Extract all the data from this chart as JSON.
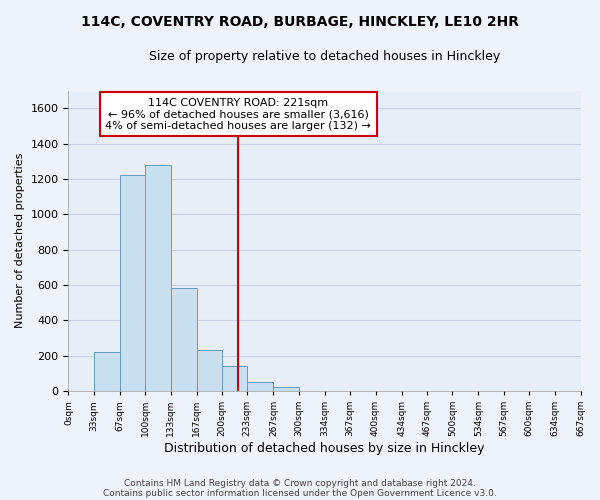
{
  "title_line1": "114C, COVENTRY ROAD, BURBAGE, HINCKLEY, LE10 2HR",
  "title_line2": "Size of property relative to detached houses in Hinckley",
  "xlabel": "Distribution of detached houses by size in Hinckley",
  "ylabel": "Number of detached properties",
  "bar_edges": [
    0,
    33,
    67,
    100,
    133,
    167,
    200,
    233,
    267,
    300,
    334,
    367,
    400,
    434,
    467,
    500,
    534,
    567,
    600,
    634,
    667
  ],
  "bar_heights": [
    0,
    220,
    1220,
    1280,
    585,
    235,
    140,
    50,
    25,
    0,
    0,
    0,
    0,
    0,
    0,
    0,
    0,
    0,
    0,
    0
  ],
  "bar_color": "#c8dff0",
  "bar_edge_color": "#6699bb",
  "vline_x": 221,
  "vline_color": "#cc0000",
  "ylim": [
    0,
    1700
  ],
  "yticks": [
    0,
    200,
    400,
    600,
    800,
    1000,
    1200,
    1400,
    1600
  ],
  "xtick_labels": [
    "0sqm",
    "33sqm",
    "67sqm",
    "100sqm",
    "133sqm",
    "167sqm",
    "200sqm",
    "233sqm",
    "267sqm",
    "300sqm",
    "334sqm",
    "367sqm",
    "400sqm",
    "434sqm",
    "467sqm",
    "500sqm",
    "534sqm",
    "567sqm",
    "600sqm",
    "634sqm",
    "667sqm"
  ],
  "annotation_title": "114C COVENTRY ROAD: 221sqm",
  "annotation_line2": "← 96% of detached houses are smaller (3,616)",
  "annotation_line3": "4% of semi-detached houses are larger (132) →",
  "footer_line1": "Contains HM Land Registry data © Crown copyright and database right 2024.",
  "footer_line2": "Contains public sector information licensed under the Open Government Licence v3.0.",
  "background_color": "#eef2fa",
  "plot_bg_color": "#e8eef8",
  "title_fontsize": 10,
  "subtitle_fontsize": 9,
  "grid_color": "#c8cfe0"
}
